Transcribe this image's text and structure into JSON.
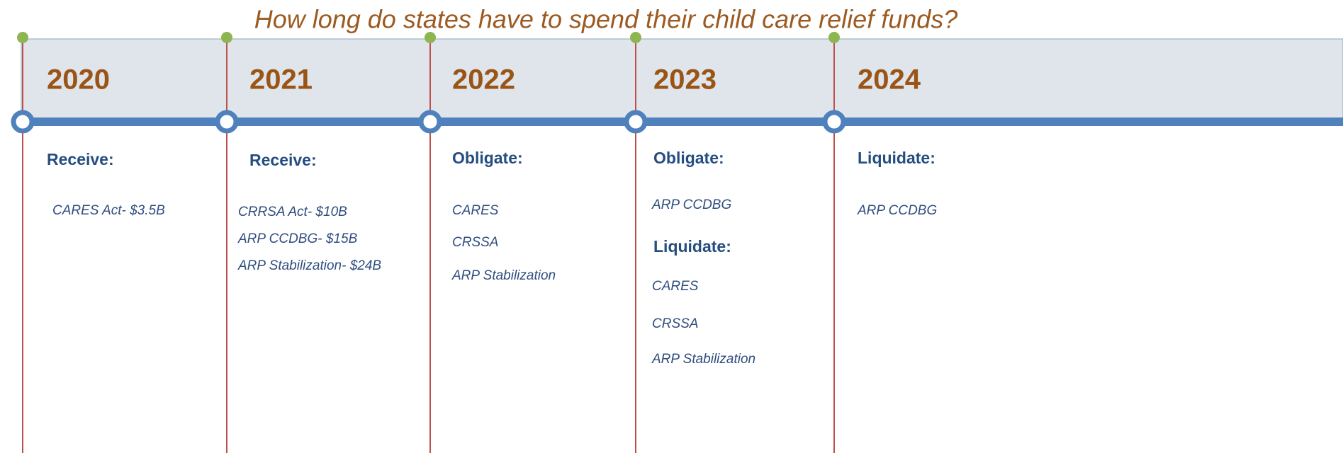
{
  "title": "How long do states have to spend their child care relief funds?",
  "columns": [
    {
      "year": "2020",
      "sections": [
        {
          "heading": "Receive:",
          "items": [
            "CARES Act- $3.5B"
          ]
        }
      ]
    },
    {
      "year": "2021",
      "sections": [
        {
          "heading": "Receive:",
          "items": [
            "CRRSA Act- $10B",
            "ARP CCDBG- $15B",
            "ARP Stabilization- $24B"
          ]
        }
      ]
    },
    {
      "year": "2022",
      "sections": [
        {
          "heading": "Obligate:",
          "items": [
            "CARES",
            "CRSSA",
            "ARP Stabilization"
          ]
        }
      ]
    },
    {
      "year": "2023",
      "sections": [
        {
          "heading": "Obligate:",
          "items": [
            "ARP CCDBG"
          ]
        },
        {
          "heading": "Liquidate:",
          "items": [
            "CARES",
            "CRSSA",
            "ARP Stabilization"
          ]
        }
      ]
    },
    {
      "year": "2024",
      "sections": [
        {
          "heading": "Liquidate:",
          "items": [
            "ARP CCDBG"
          ]
        }
      ]
    }
  ]
}
